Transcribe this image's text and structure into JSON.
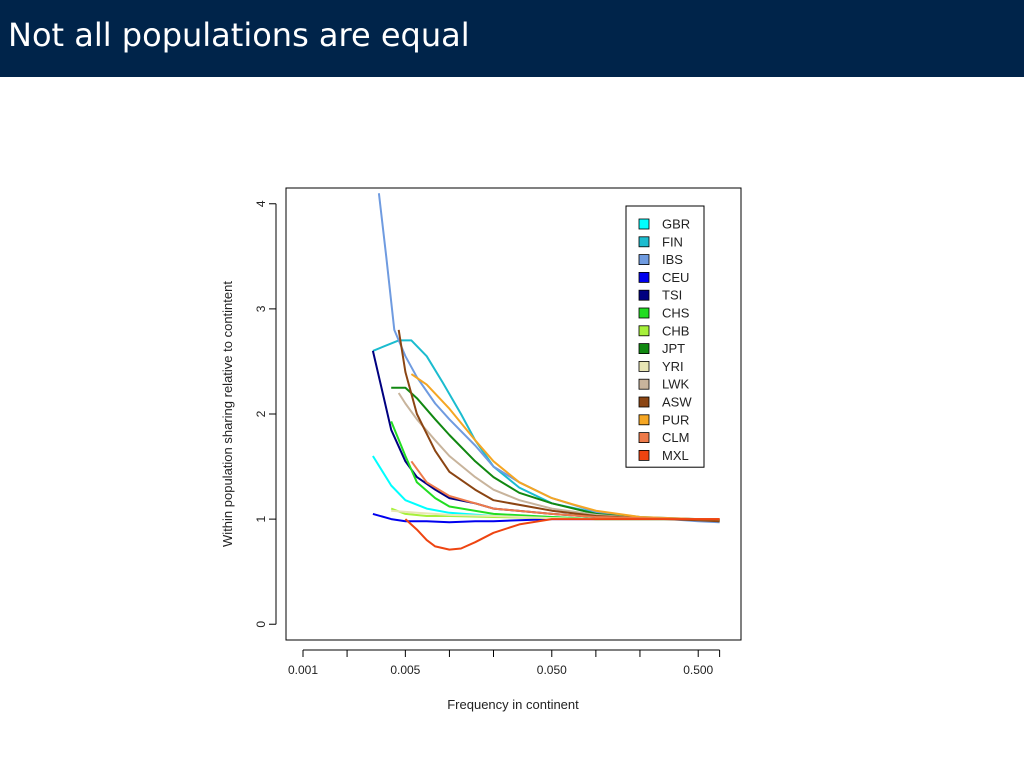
{
  "slide": {
    "title": "Not all populations are equal"
  },
  "chart_data": {
    "type": "line",
    "xlabel": "Frequency in continent",
    "ylabel": "Within population sharing relative to contintent",
    "x_scale": "log",
    "xlim": [
      0.001,
      0.75
    ],
    "ylim": [
      -0.15,
      4.15
    ],
    "x_ticks": [
      0.001,
      0.002,
      0.005,
      0.01,
      0.02,
      0.05,
      0.1,
      0.2,
      0.5,
      0.7
    ],
    "x_tick_labels": [
      "0.001",
      "",
      "0.005",
      "",
      "",
      "0.050",
      "",
      "",
      "0.500",
      ""
    ],
    "y_ticks": [
      0,
      1,
      2,
      3,
      4
    ],
    "y_tick_labels": [
      "0",
      "1",
      "2",
      "3",
      "4"
    ],
    "legend_position": "top-right",
    "grid": false,
    "series": [
      {
        "name": "GBR",
        "color": "#00ffff",
        "x": [
          0.003,
          0.004,
          0.005,
          0.007,
          0.01,
          0.02,
          0.05,
          0.1,
          0.2,
          0.5,
          0.7
        ],
        "y": [
          1.6,
          1.32,
          1.18,
          1.1,
          1.06,
          1.03,
          1.02,
          1.0,
          1.0,
          1.0,
          0.99
        ]
      },
      {
        "name": "FIN",
        "color": "#1bbccf",
        "x": [
          0.003,
          0.0045,
          0.0055,
          0.007,
          0.009,
          0.012,
          0.015,
          0.02,
          0.03,
          0.05,
          0.1,
          0.2,
          0.5,
          0.7
        ],
        "y": [
          2.6,
          2.7,
          2.7,
          2.55,
          2.3,
          2.0,
          1.75,
          1.5,
          1.3,
          1.15,
          1.06,
          1.02,
          1.0,
          0.99
        ]
      },
      {
        "name": "IBS",
        "color": "#6f9be0",
        "x": [
          0.0033,
          0.0037,
          0.0042,
          0.005,
          0.006,
          0.008,
          0.01,
          0.015,
          0.02,
          0.03,
          0.05,
          0.1,
          0.2,
          0.5,
          0.7
        ],
        "y": [
          4.1,
          3.5,
          2.8,
          2.55,
          2.35,
          2.1,
          1.95,
          1.7,
          1.5,
          1.35,
          1.2,
          1.07,
          1.02,
          0.98,
          0.97
        ]
      },
      {
        "name": "CEU",
        "color": "#0000ee",
        "x": [
          0.003,
          0.004,
          0.005,
          0.007,
          0.01,
          0.015,
          0.02,
          0.05,
          0.1,
          0.2,
          0.5,
          0.7
        ],
        "y": [
          1.05,
          1.0,
          0.98,
          0.98,
          0.97,
          0.98,
          0.98,
          1.0,
          1.0,
          1.0,
          1.0,
          0.99
        ]
      },
      {
        "name": "TSI",
        "color": "#000080",
        "x": [
          0.003,
          0.0035,
          0.004,
          0.005,
          0.006,
          0.008,
          0.01,
          0.015,
          0.02,
          0.05,
          0.1,
          0.2,
          0.5,
          0.7
        ],
        "y": [
          2.6,
          2.2,
          1.85,
          1.55,
          1.4,
          1.28,
          1.2,
          1.15,
          1.1,
          1.05,
          1.02,
          1.01,
          1.0,
          0.99
        ]
      },
      {
        "name": "CHS",
        "color": "#22dd22",
        "x": [
          0.004,
          0.005,
          0.006,
          0.008,
          0.01,
          0.02,
          0.05,
          0.1,
          0.2,
          0.5,
          0.7
        ],
        "y": [
          1.93,
          1.6,
          1.35,
          1.2,
          1.12,
          1.05,
          1.02,
          1.0,
          1.0,
          1.0,
          0.99
        ]
      },
      {
        "name": "CHB",
        "color": "#a6f03a",
        "x": [
          0.004,
          0.005,
          0.007,
          0.01,
          0.02,
          0.05,
          0.1,
          0.2,
          0.5,
          0.7
        ],
        "y": [
          1.1,
          1.05,
          1.03,
          1.03,
          1.02,
          1.01,
          1.0,
          1.0,
          1.0,
          0.99
        ]
      },
      {
        "name": "JPT",
        "color": "#118811",
        "x": [
          0.004,
          0.005,
          0.006,
          0.008,
          0.01,
          0.015,
          0.02,
          0.03,
          0.05,
          0.1,
          0.2,
          0.5,
          0.7
        ],
        "y": [
          2.25,
          2.25,
          2.15,
          1.95,
          1.8,
          1.55,
          1.4,
          1.25,
          1.15,
          1.05,
          1.01,
          1.0,
          0.98
        ]
      },
      {
        "name": "YRI",
        "color": "#e9e6b4",
        "x": [
          0.004,
          0.006,
          0.01,
          0.02,
          0.05,
          0.1,
          0.2,
          0.5,
          0.7
        ],
        "y": [
          1.08,
          1.06,
          1.04,
          1.03,
          1.01,
          1.0,
          1.0,
          1.0,
          0.99
        ]
      },
      {
        "name": "LWK",
        "color": "#c8b49c",
        "x": [
          0.0045,
          0.005,
          0.006,
          0.008,
          0.01,
          0.015,
          0.02,
          0.03,
          0.05,
          0.1,
          0.2,
          0.5,
          0.7
        ],
        "y": [
          2.2,
          2.1,
          1.95,
          1.75,
          1.6,
          1.4,
          1.28,
          1.18,
          1.1,
          1.04,
          1.01,
          1.0,
          0.98
        ]
      },
      {
        "name": "ASW",
        "color": "#8b4513",
        "x": [
          0.0045,
          0.005,
          0.006,
          0.008,
          0.01,
          0.015,
          0.02,
          0.05,
          0.1,
          0.2,
          0.5,
          0.7
        ],
        "y": [
          2.8,
          2.4,
          2.0,
          1.65,
          1.45,
          1.28,
          1.18,
          1.08,
          1.03,
          1.01,
          0.99,
          0.98
        ]
      },
      {
        "name": "PUR",
        "color": "#f5a623",
        "x": [
          0.0055,
          0.007,
          0.01,
          0.015,
          0.02,
          0.03,
          0.05,
          0.07,
          0.1,
          0.2,
          0.5,
          0.7
        ],
        "y": [
          2.38,
          2.28,
          2.05,
          1.75,
          1.55,
          1.35,
          1.2,
          1.14,
          1.08,
          1.02,
          1.0,
          1.0
        ]
      },
      {
        "name": "CLM",
        "color": "#ee7a4a",
        "x": [
          0.0055,
          0.007,
          0.01,
          0.015,
          0.02,
          0.05,
          0.1,
          0.2,
          0.5,
          0.7
        ],
        "y": [
          1.55,
          1.35,
          1.22,
          1.15,
          1.1,
          1.05,
          1.02,
          1.01,
          1.0,
          1.0
        ]
      },
      {
        "name": "MXL",
        "color": "#ee4411",
        "x": [
          0.005,
          0.006,
          0.007,
          0.008,
          0.01,
          0.012,
          0.015,
          0.02,
          0.03,
          0.05,
          0.1,
          0.2,
          0.5,
          0.7
        ],
        "y": [
          1.0,
          0.9,
          0.8,
          0.74,
          0.71,
          0.72,
          0.78,
          0.87,
          0.95,
          1.0,
          1.0,
          1.0,
          1.0,
          1.0
        ]
      }
    ]
  }
}
